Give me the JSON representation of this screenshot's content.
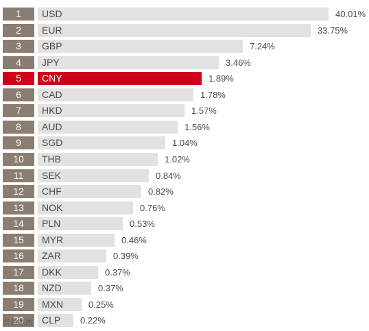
{
  "chart_data": {
    "type": "bar",
    "orientation": "horizontal",
    "ranks": [
      "1",
      "2",
      "3",
      "4",
      "5",
      "6",
      "7",
      "8",
      "9",
      "10",
      "11",
      "12",
      "13",
      "14",
      "15",
      "16",
      "17",
      "18",
      "19",
      "20"
    ],
    "categories": [
      "USD",
      "EUR",
      "GBP",
      "JPY",
      "CNY",
      "CAD",
      "HKD",
      "AUD",
      "SGD",
      "THB",
      "SEK",
      "CHF",
      "NOK",
      "PLN",
      "MYR",
      "ZAR",
      "DKK",
      "NZD",
      "MXN",
      "CLP"
    ],
    "values": [
      40.01,
      33.75,
      7.24,
      3.46,
      1.89,
      1.78,
      1.57,
      1.56,
      1.04,
      1.02,
      0.84,
      0.82,
      0.76,
      0.53,
      0.46,
      0.39,
      0.37,
      0.37,
      0.25,
      0.22
    ],
    "value_labels": [
      "40.01%",
      "33.75%",
      "7.24%",
      "3.46%",
      "1.89%",
      "1.78%",
      "1.57%",
      "1.56%",
      "1.04%",
      "1.02%",
      "0.84%",
      "0.82%",
      "0.76%",
      "0.53%",
      "0.46%",
      "0.39%",
      "0.37%",
      "0.37%",
      "0.25%",
      "0.22%"
    ],
    "highlight": "CNY",
    "grid": false,
    "legend": "none"
  },
  "colors": {
    "bar": "#e3e2e0",
    "rank_box": "#8a7d72",
    "highlight": "#d0021b",
    "text": "#4a4a4a"
  },
  "watermark_text": "凯恩思图"
}
